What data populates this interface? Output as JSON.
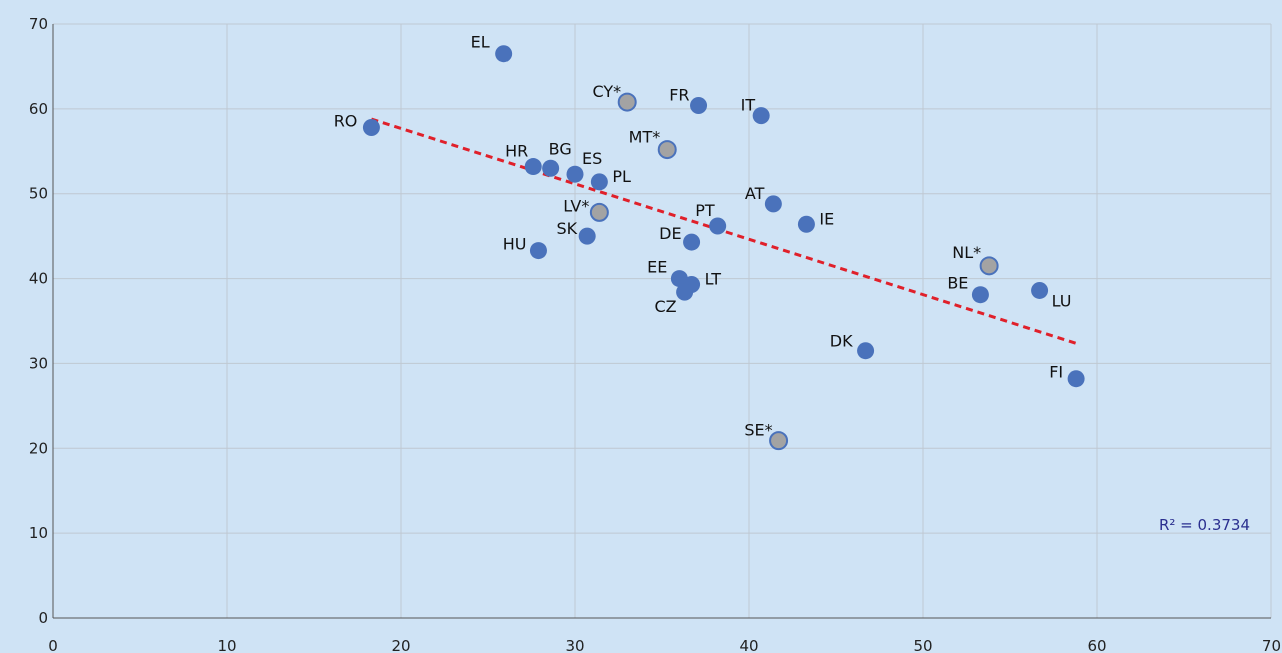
{
  "chart_data": {
    "type": "scatter",
    "title": "",
    "xlabel": "",
    "ylabel": "",
    "xlim": [
      0,
      70
    ],
    "ylim": [
      0,
      70
    ],
    "x_ticks": [
      0,
      10,
      20,
      30,
      40,
      50,
      60,
      70
    ],
    "y_ticks": [
      0,
      10,
      20,
      30,
      40,
      50,
      60,
      70
    ],
    "grid": true,
    "colors": {
      "main": "#4a72bb",
      "starred": "#a3a3a3",
      "starred_edge": "#4a72bb",
      "trend": "#e0202a"
    },
    "points": [
      {
        "label": "EL",
        "x": 25.9,
        "y": 66.5,
        "starred": false
      },
      {
        "label": "CY*",
        "x": 33.0,
        "y": 60.8,
        "starred": true
      },
      {
        "label": "FR",
        "x": 37.1,
        "y": 60.4,
        "starred": false
      },
      {
        "label": "IT",
        "x": 40.7,
        "y": 59.2,
        "starred": false
      },
      {
        "label": "RO",
        "x": 18.3,
        "y": 57.8,
        "starred": false
      },
      {
        "label": "MT*",
        "x": 35.3,
        "y": 55.2,
        "starred": true
      },
      {
        "label": "HR",
        "x": 27.6,
        "y": 53.2,
        "starred": false
      },
      {
        "label": "BG",
        "x": 28.6,
        "y": 53.0,
        "starred": false
      },
      {
        "label": "ES",
        "x": 30.0,
        "y": 52.3,
        "starred": false
      },
      {
        "label": "PL",
        "x": 31.4,
        "y": 51.4,
        "starred": false
      },
      {
        "label": "AT",
        "x": 41.4,
        "y": 48.8,
        "starred": false
      },
      {
        "label": "LV*",
        "x": 31.4,
        "y": 47.8,
        "starred": true
      },
      {
        "label": "IE",
        "x": 43.3,
        "y": 46.4,
        "starred": false
      },
      {
        "label": "PT",
        "x": 38.2,
        "y": 46.2,
        "starred": false
      },
      {
        "label": "SK",
        "x": 30.7,
        "y": 45.0,
        "starred": false
      },
      {
        "label": "DE",
        "x": 36.7,
        "y": 44.3,
        "starred": false
      },
      {
        "label": "HU",
        "x": 27.9,
        "y": 43.3,
        "starred": false
      },
      {
        "label": "NL*",
        "x": 53.8,
        "y": 41.5,
        "starred": true
      },
      {
        "label": "EE",
        "x": 36.0,
        "y": 40.0,
        "starred": false
      },
      {
        "label": "LT",
        "x": 36.7,
        "y": 39.3,
        "starred": false
      },
      {
        "label": "LU",
        "x": 56.7,
        "y": 38.6,
        "starred": false
      },
      {
        "label": "CZ",
        "x": 36.3,
        "y": 38.4,
        "starred": false
      },
      {
        "label": "BE",
        "x": 53.3,
        "y": 38.1,
        "starred": false
      },
      {
        "label": "DK",
        "x": 46.7,
        "y": 31.5,
        "starred": false
      },
      {
        "label": "FI",
        "x": 58.8,
        "y": 28.2,
        "starred": false
      },
      {
        "label": "SE*",
        "x": 41.7,
        "y": 20.9,
        "starred": true
      }
    ],
    "trendline": {
      "x": [
        18.3,
        58.9
      ],
      "y": [
        58.8,
        32.3
      ],
      "style": "dashed"
    },
    "r_squared_label": "R² = 0.3734"
  }
}
